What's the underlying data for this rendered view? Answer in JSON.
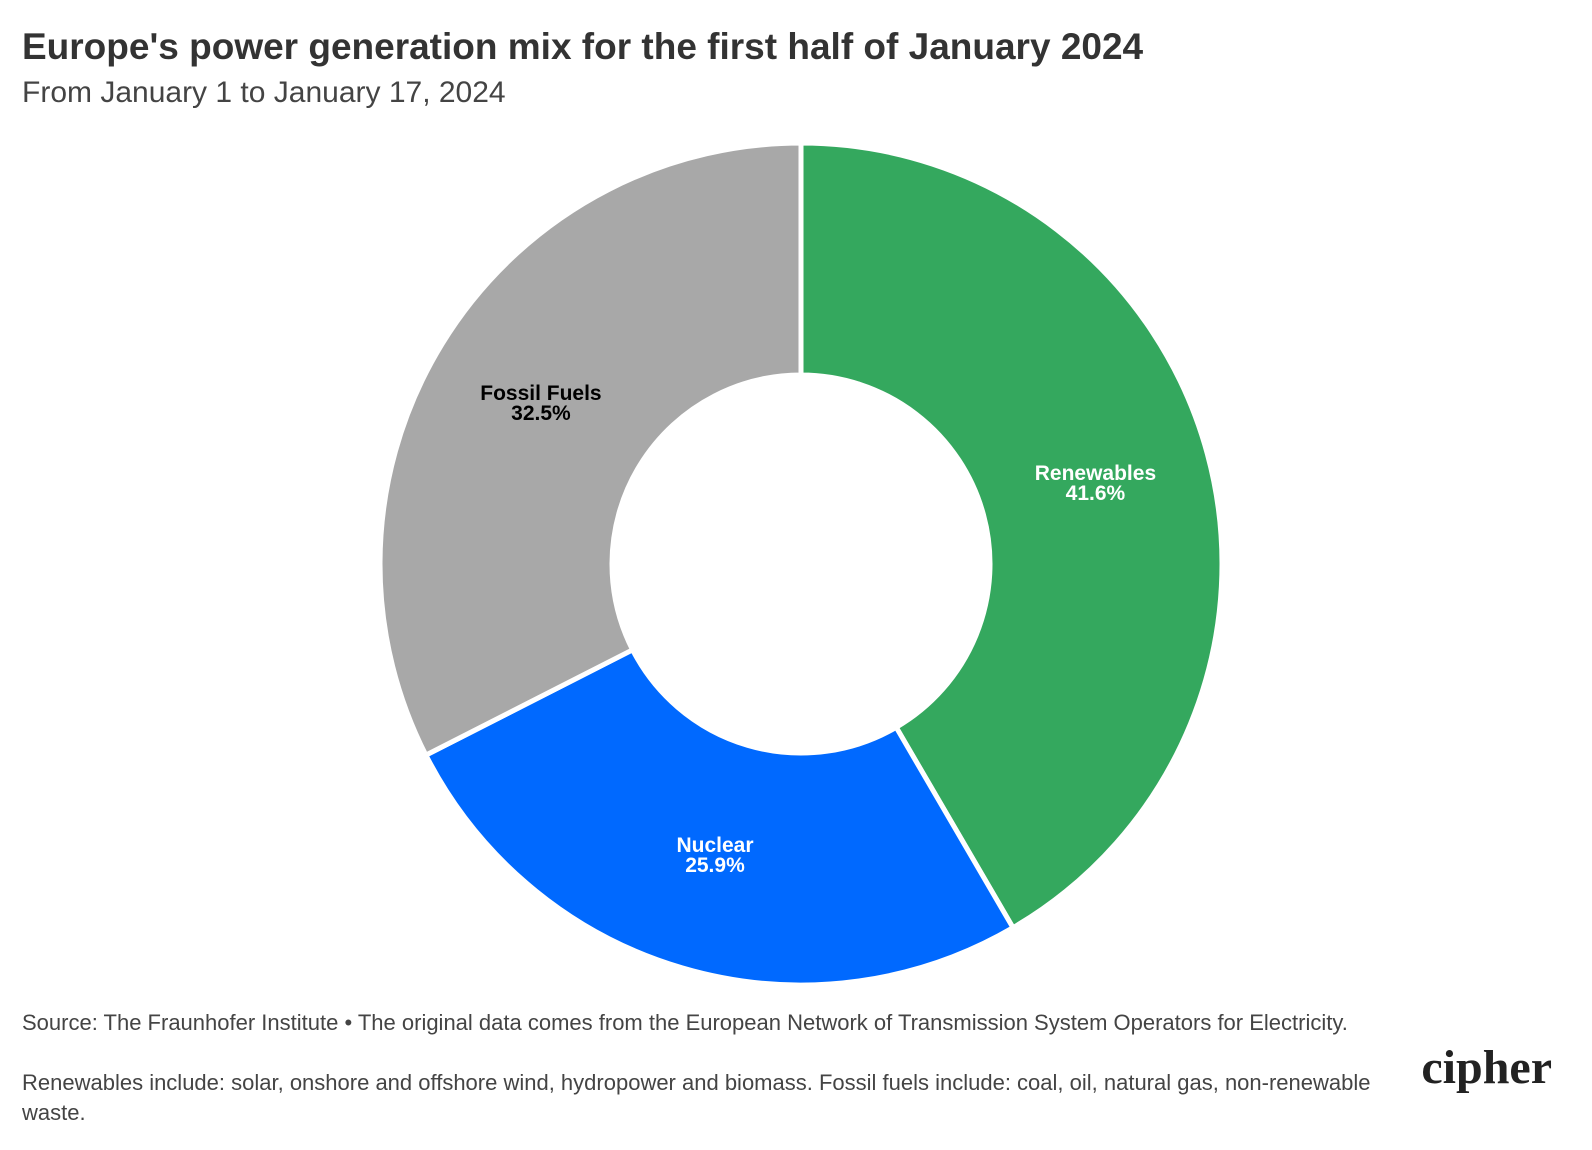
{
  "chart_data": {
    "type": "donut",
    "title": "Europe's power generation mix for the first half of January 2024",
    "subtitle": "From January 1 to January 17, 2024",
    "categories": [
      "Renewables",
      "Nuclear",
      "Fossil Fuels"
    ],
    "values": [
      41.6,
      25.9,
      32.5
    ],
    "value_labels": [
      "41.6%",
      "25.9%",
      "32.5%"
    ],
    "colors": [
      "#34a85e",
      "#0069ff",
      "#a8a8a8"
    ],
    "label_colors": [
      "#ffffff",
      "#ffffff",
      "#000000"
    ],
    "source": "Source: The Fraunhofer Institute • The original data comes from the European Network of Transmission System Operators for Electricity.",
    "note": "Renewables include: solar, onshore and offshore wind, hydropower and biomass. Fossil fuels include: coal, oil, natural gas, non-renewable waste.",
    "logo": "cipher"
  }
}
